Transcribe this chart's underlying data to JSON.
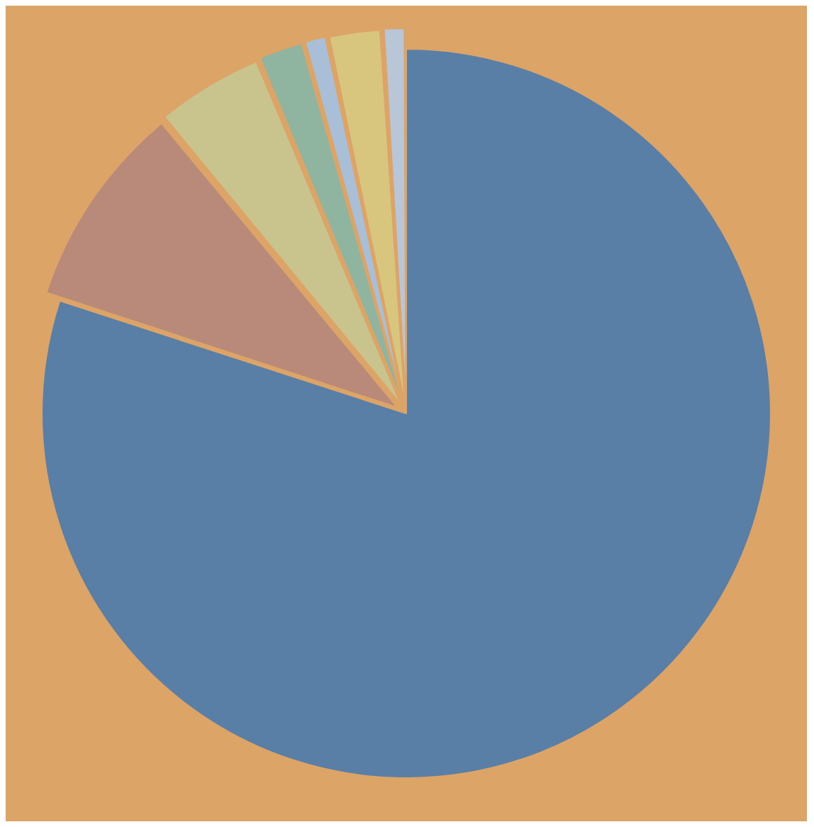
{
  "chart_data": {
    "type": "pie",
    "categories": [
      null,
      null,
      null,
      null,
      null,
      null,
      null
    ],
    "values": [
      80,
      9,
      4.7,
      2,
      1,
      2.3,
      1
    ],
    "colors": [
      "#5a7fa6",
      "#b98a7a",
      "#c9c48e",
      "#8fb5a0",
      "#a9bfd8",
      "#d9c67e",
      "#b9c6d8"
    ]
  }
}
